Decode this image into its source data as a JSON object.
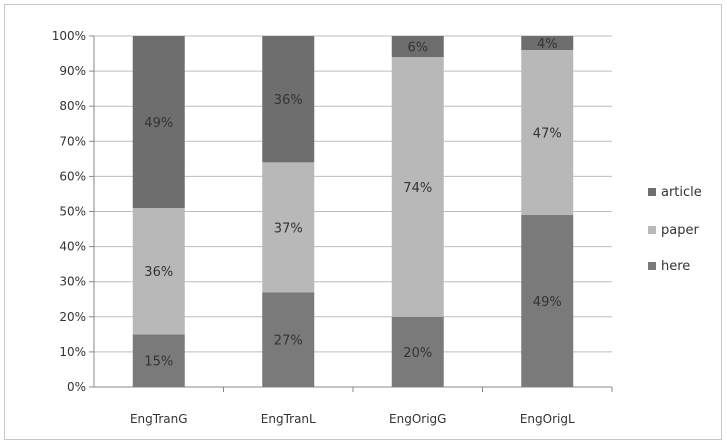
{
  "chart_data": {
    "type": "bar",
    "stacked": true,
    "percent": true,
    "categories": [
      "EngTranG",
      "EngTranL",
      "EngOrigG",
      "EngOrigL"
    ],
    "series": [
      {
        "name": "here",
        "values": [
          15,
          27,
          20,
          49
        ],
        "labels": [
          "15%",
          "27%",
          "20%",
          "49%"
        ],
        "color": "#7a7a7a"
      },
      {
        "name": "paper",
        "values": [
          36,
          37,
          74,
          47
        ],
        "labels": [
          "36%",
          "37%",
          "74%",
          "47%"
        ],
        "color": "#b8b8b8"
      },
      {
        "name": "article",
        "values": [
          49,
          36,
          6,
          4
        ],
        "labels": [
          "49%",
          "36%",
          "6%",
          "4%"
        ],
        "color": "#6e6e6e"
      }
    ],
    "ylim": [
      0,
      100
    ],
    "yticks": [
      "0%",
      "10%",
      "20%",
      "30%",
      "40%",
      "50%",
      "60%",
      "70%",
      "80%",
      "90%",
      "100%"
    ],
    "grid": true,
    "legend": {
      "position": "right",
      "order": [
        "article",
        "paper",
        "here"
      ]
    },
    "title": "",
    "xlabel": "",
    "ylabel": ""
  }
}
